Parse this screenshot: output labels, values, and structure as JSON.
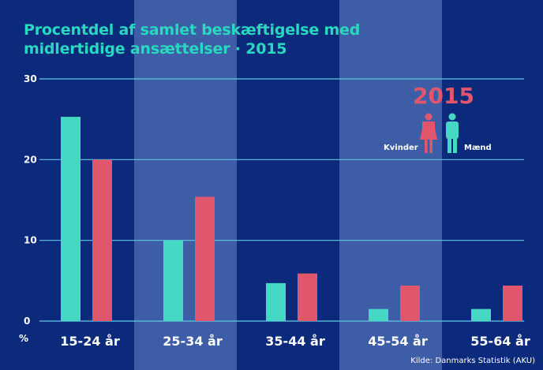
{
  "title_line1": "Procentdel af samlet beskæftigelse med",
  "title_line2": "midlertidige ansættelser · 2015",
  "ylabel": "%",
  "source": "Kilde: Danmarks Statistik (AKU)",
  "colors": {
    "background": "#0b2a7c",
    "band": "#3d5ea6",
    "title": "#2ad7bf",
    "kvinder": "#e0566d",
    "maend": "#45d8c4",
    "grid": "#5fc6e0"
  },
  "legend": {
    "year": "2015",
    "kvinder_icon": "woman-icon",
    "maend_icon": "man-icon",
    "kvinder_label": "Kvinder",
    "maend_label": "Mænd"
  },
  "chart_data": {
    "type": "bar",
    "categories": [
      "15-24 år",
      "25-34 år",
      "35-44 år",
      "45-54 år",
      "55-64 år"
    ],
    "series": [
      {
        "name": "Mænd",
        "values": [
          25.3,
          10.0,
          4.7,
          1.5,
          1.5
        ]
      },
      {
        "name": "Kvinder",
        "values": [
          20.0,
          15.4,
          5.9,
          4.4,
          4.4
        ]
      }
    ],
    "ylim": [
      0,
      30
    ],
    "yticks": [
      0,
      10,
      20,
      30
    ],
    "grid": true,
    "legend_position": "top-right"
  }
}
